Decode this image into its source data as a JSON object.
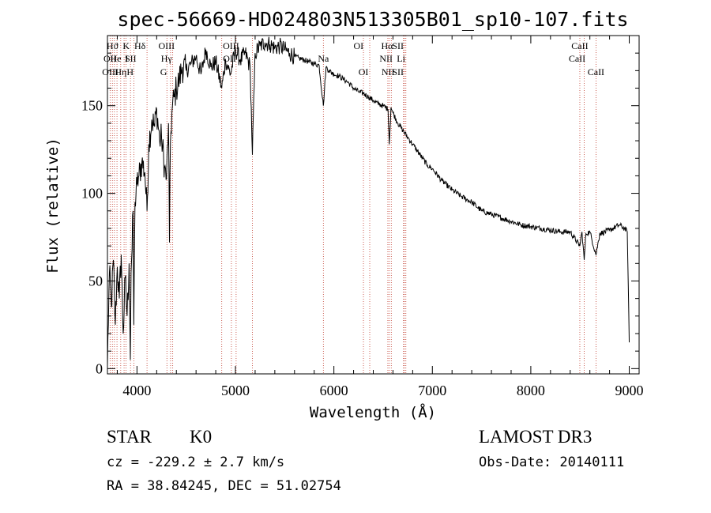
{
  "chart_data": {
    "type": "line",
    "title": "spec-56669-HD024803N513305B01_sp10-107.fits",
    "xlabel": "Wavelength (Å)",
    "ylabel": "Flux (relative)",
    "xlim": [
      3700,
      9100
    ],
    "ylim": [
      -3,
      190
    ],
    "xticks": [
      4000,
      5000,
      6000,
      7000,
      8000,
      9000
    ],
    "yticks": [
      0,
      50,
      100,
      150
    ],
    "xtick_labels": [
      "4000",
      "5000",
      "6000",
      "7000",
      "8000",
      "9000"
    ],
    "ytick_labels": [
      "0",
      "50",
      "100",
      "150"
    ],
    "series": [
      {
        "name": "spectrum",
        "x": [
          3700,
          3720,
          3740,
          3760,
          3780,
          3800,
          3820,
          3840,
          3860,
          3880,
          3900,
          3920,
          3933,
          3940,
          3950,
          3960,
          3968,
          3980,
          4000,
          4020,
          4050,
          4080,
          4102,
          4120,
          4150,
          4180,
          4200,
          4230,
          4250,
          4280,
          4300,
          4320,
          4330,
          4340,
          4360,
          4380,
          4400,
          4430,
          4460,
          4500,
          4550,
          4600,
          4650,
          4700,
          4750,
          4800,
          4861,
          4900,
          4950,
          5000,
          5050,
          5100,
          5150,
          5172,
          5200,
          5250,
          5300,
          5350,
          5400,
          5450,
          5500,
          5550,
          5600,
          5650,
          5700,
          5750,
          5800,
          5850,
          5893,
          5920,
          5950,
          6000,
          6050,
          6100,
          6150,
          6200,
          6250,
          6300,
          6350,
          6400,
          6450,
          6500,
          6550,
          6563,
          6580,
          6600,
          6650,
          6700,
          6750,
          6800,
          6850,
          6900,
          6950,
          7000,
          7100,
          7200,
          7300,
          7400,
          7500,
          7600,
          7700,
          7800,
          7900,
          8000,
          8100,
          8200,
          8300,
          8400,
          8498,
          8520,
          8542,
          8560,
          8600,
          8662,
          8700,
          8800,
          8900,
          8950,
          8980,
          9000
        ],
        "values": [
          2,
          55,
          35,
          62,
          25,
          58,
          40,
          65,
          20,
          52,
          30,
          60,
          5,
          55,
          68,
          90,
          25,
          95,
          105,
          110,
          118,
          112,
          90,
          128,
          142,
          138,
          148,
          130,
          132,
          115,
          108,
          140,
          72,
          130,
          150,
          155,
          160,
          165,
          172,
          170,
          174,
          178,
          168,
          182,
          172,
          175,
          160,
          176,
          168,
          182,
          176,
          180,
          172,
          122,
          180,
          184,
          186,
          185,
          183,
          184,
          182,
          180,
          178,
          177,
          176,
          175,
          174,
          173,
          150,
          172,
          170,
          168,
          167,
          165,
          163,
          160,
          158,
          157,
          155,
          153,
          151,
          150,
          148,
          128,
          149,
          146,
          140,
          136,
          132,
          128,
          124,
          120,
          116,
          114,
          107,
          102,
          98,
          95,
          90,
          88,
          86,
          84,
          82,
          81,
          80,
          79,
          78,
          78,
          70,
          78,
          62,
          77,
          78,
          65,
          77,
          79,
          82,
          80,
          78,
          15
        ]
      }
    ],
    "annotations": [
      {
        "label": "OII",
        "x": 3727,
        "row": 2
      },
      {
        "label": "OIII",
        "x": 3729,
        "row": 3
      },
      {
        "label": "Hϑ",
        "x": 3750,
        "row": 1
      },
      {
        "label": "He",
        "x": 3784,
        "row": 2
      },
      {
        "label": "Hη",
        "x": 3835,
        "row": 3
      },
      {
        "label": "K",
        "x": 3890,
        "row": 1
      },
      {
        "label": "I",
        "x": 3896,
        "row": 2
      },
      {
        "label": "SII",
        "x": 3935,
        "row": 2
      },
      {
        "label": "H",
        "x": 3930,
        "row": 3
      },
      {
        "label": "Hδ",
        "x": 4030,
        "row": 1
      },
      {
        "label": "OIII",
        "x": 4300,
        "row": 1
      },
      {
        "label": "Hγ",
        "x": 4300,
        "row": 2
      },
      {
        "label": "G",
        "x": 4270,
        "row": 3
      },
      {
        "label": "OIII",
        "x": 4955,
        "row": 1
      },
      {
        "label": "OII",
        "x": 4940,
        "row": 2
      },
      {
        "label": "Na",
        "x": 5893,
        "row": 2
      },
      {
        "label": "OI",
        "x": 6250,
        "row": 1
      },
      {
        "label": "OI",
        "x": 6300,
        "row": 3
      },
      {
        "label": "Hα",
        "x": 6540,
        "row": 1
      },
      {
        "label": "SII",
        "x": 6650,
        "row": 1
      },
      {
        "label": "NII",
        "x": 6530,
        "row": 2
      },
      {
        "label": "Li",
        "x": 6682,
        "row": 2
      },
      {
        "label": "NII",
        "x": 6550,
        "row": 3
      },
      {
        "label": "SII",
        "x": 6650,
        "row": 3
      },
      {
        "label": "CaII",
        "x": 8498,
        "row": 1
      },
      {
        "label": "CaII",
        "x": 8470,
        "row": 2
      },
      {
        "label": "CaII",
        "x": 8662,
        "row": 3
      }
    ],
    "line_markers": [
      3727,
      3750,
      3771,
      3797,
      3835,
      3869,
      3889,
      3934,
      3968,
      4102,
      4304,
      4341,
      4363,
      4861,
      4959,
      5007,
      5172,
      5893,
      6300,
      6364,
      6548,
      6563,
      6583,
      6707,
      6716,
      6731,
      8498,
      8542,
      8662
    ]
  },
  "info": {
    "object_class": "STAR",
    "subclass": "K0",
    "survey": "LAMOST DR3",
    "redshift": "cz = -229.2 ± 2.7 km/s",
    "obs_date": "Obs-Date: 20140111",
    "coords": "RA =  38.84245, DEC =  51.02754"
  }
}
